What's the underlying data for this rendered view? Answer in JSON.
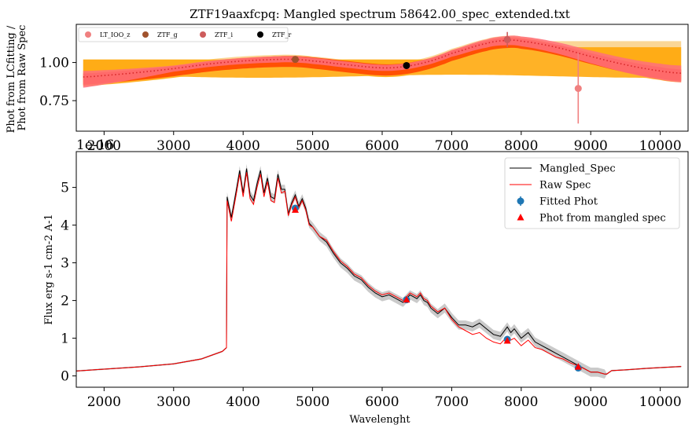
{
  "chart_data": [
    {
      "type": "line",
      "title": "ZTF19aaxfcpq: Mangled spectrum 58642.00_spec_extended.txt",
      "xlabel": "",
      "ylabel": "Phot from LCfitting /\nPhot from Raw Spec",
      "xlim": [
        1600,
        10400
      ],
      "ylim": [
        0.55,
        1.25
      ],
      "xticks": [
        "2000",
        "3000",
        "4000",
        "5000",
        "6000",
        "7000",
        "8000",
        "9000",
        "10000"
      ],
      "yticks": [
        "0.75",
        "1.00"
      ],
      "offset_label": "1e-16",
      "grid": false,
      "legend": "top-left",
      "legend_entries": [
        {
          "name": "LT_IOO_z",
          "color": "#f08080"
        },
        {
          "name": "ZTF_g",
          "color": "#a0522d"
        },
        {
          "name": "ZTF_i",
          "color": "#cd5c5c"
        },
        {
          "name": "ZTF_r",
          "color": "#000000"
        }
      ],
      "ratio_curve": {
        "x": [
          1700,
          2000,
          2500,
          3000,
          3500,
          4000,
          4500,
          4750,
          5000,
          5500,
          6000,
          6350,
          6700,
          7000,
          7500,
          7800,
          8000,
          8500,
          9000,
          9500,
          10000,
          10300
        ],
        "y": [
          0.905,
          0.915,
          0.935,
          0.96,
          0.99,
          1.01,
          1.02,
          1.02,
          1.01,
          0.985,
          0.965,
          0.975,
          1.01,
          1.06,
          1.125,
          1.145,
          1.14,
          1.1,
          1.04,
          0.985,
          0.945,
          0.93
        ]
      },
      "points": [
        {
          "filter": "LT_IOO_z",
          "x": 8820,
          "y": 0.83,
          "yerr": 0.23,
          "color": "#f08080"
        },
        {
          "filter": "ZTF_g",
          "x": 4750,
          "y": 1.02,
          "yerr": 0.02,
          "color": "#a0522d"
        },
        {
          "filter": "ZTF_i",
          "x": 7800,
          "y": 1.15,
          "yerr": 0.05,
          "color": "#cd5c5c"
        },
        {
          "filter": "ZTF_r",
          "x": 6350,
          "y": 0.98,
          "yerr": 0.01,
          "color": "#000000"
        }
      ],
      "colors": {
        "band_light": "#f8c56a",
        "band_orange": "#ffa500",
        "band_red": "#ff4500",
        "band_pink": "#ff6f7d",
        "median": "#d62728"
      }
    },
    {
      "type": "line",
      "title": "",
      "xlabel": "Wavelenght",
      "ylabel": "Flux erg s-1 cm-2 A-1",
      "xlim": [
        1600,
        10400
      ],
      "ylim": [
        -0.3,
        5.95
      ],
      "xticks": [
        "2000",
        "3000",
        "4000",
        "5000",
        "6000",
        "7000",
        "8000",
        "9000",
        "10000"
      ],
      "yticks": [
        "0",
        "1",
        "2",
        "3",
        "4",
        "5"
      ],
      "grid": false,
      "legend": "top-right",
      "legend_entries": [
        {
          "name": "Mangled_Spec",
          "color": "#000000",
          "marker": "line"
        },
        {
          "name": "Raw Spec",
          "color": "#ff0000",
          "marker": "line"
        },
        {
          "name": "Fitted Phot",
          "color": "#1f77b4",
          "marker": "errorbar-dot"
        },
        {
          "name": "Phot from mangled spec",
          "color": "#ff0000",
          "marker": "triangle"
        }
      ],
      "series": [
        {
          "name": "Mangled_Spec",
          "color": "#000000",
          "x": [
            1600,
            2000,
            2500,
            3000,
            3400,
            3700,
            3760,
            3770,
            3830,
            3900,
            3950,
            4000,
            4050,
            4100,
            4150,
            4200,
            4250,
            4300,
            4350,
            4400,
            4450,
            4500,
            4550,
            4600,
            4650,
            4700,
            4750,
            4800,
            4850,
            4900,
            4950,
            5000,
            5100,
            5200,
            5300,
            5400,
            5500,
            5600,
            5700,
            5800,
            5900,
            6000,
            6100,
            6200,
            6300,
            6400,
            6500,
            6550,
            6600,
            6650,
            6700,
            6800,
            6900,
            7000,
            7100,
            7200,
            7300,
            7400,
            7500,
            7600,
            7700,
            7800,
            7850,
            7900,
            8000,
            8100,
            8200,
            8300,
            8400,
            8500,
            8600,
            8700,
            8800,
            8900,
            9000,
            9100,
            9200,
            9230,
            9300,
            9500,
            9800,
            10000,
            10300
          ],
          "y": [
            0.13,
            0.18,
            0.24,
            0.32,
            0.45,
            0.65,
            0.75,
            4.75,
            4.2,
            4.9,
            5.45,
            4.85,
            5.5,
            4.8,
            4.65,
            5.1,
            5.45,
            4.85,
            5.25,
            4.75,
            4.7,
            5.35,
            4.95,
            4.95,
            4.3,
            4.6,
            4.8,
            4.5,
            4.7,
            4.45,
            4.05,
            3.95,
            3.7,
            3.55,
            3.25,
            3.0,
            2.85,
            2.65,
            2.55,
            2.35,
            2.2,
            2.1,
            2.15,
            2.05,
            1.95,
            2.15,
            2.05,
            2.15,
            2.0,
            1.95,
            1.8,
            1.65,
            1.8,
            1.55,
            1.35,
            1.35,
            1.3,
            1.4,
            1.25,
            1.1,
            1.05,
            1.3,
            1.15,
            1.25,
            1.0,
            1.15,
            0.9,
            0.8,
            0.7,
            0.6,
            0.5,
            0.4,
            0.3,
            0.2,
            0.1,
            0.1,
            0.05,
            0.05,
            0.14,
            0.16,
            0.2,
            0.22,
            0.25
          ]
        },
        {
          "name": "Raw Spec",
          "color": "#ff0000",
          "x": [
            1600,
            2000,
            2500,
            3000,
            3400,
            3700,
            3760,
            3770,
            3830,
            3900,
            3950,
            4000,
            4050,
            4100,
            4150,
            4200,
            4250,
            4300,
            4350,
            4400,
            4450,
            4500,
            4550,
            4600,
            4650,
            4700,
            4750,
            4800,
            4850,
            4900,
            4950,
            5000,
            5100,
            5200,
            5300,
            5400,
            5500,
            5600,
            5700,
            5800,
            5900,
            6000,
            6100,
            6200,
            6300,
            6400,
            6500,
            6550,
            6600,
            6650,
            6700,
            6800,
            6900,
            7000,
            7100,
            7200,
            7300,
            7400,
            7500,
            7600,
            7700,
            7800,
            7850,
            7900,
            8000,
            8100,
            8200,
            8300,
            8400,
            8500,
            8600,
            8700,
            8800,
            8900,
            9000,
            9100,
            9200,
            9230,
            9300,
            9500,
            9800,
            10000,
            10300
          ],
          "y": [
            0.13,
            0.18,
            0.24,
            0.32,
            0.45,
            0.65,
            0.75,
            4.65,
            4.1,
            4.8,
            5.35,
            4.75,
            5.4,
            4.7,
            4.55,
            5.0,
            5.35,
            4.75,
            5.15,
            4.65,
            4.6,
            5.25,
            4.85,
            4.9,
            4.25,
            4.55,
            4.75,
            4.45,
            4.65,
            4.4,
            4.0,
            3.95,
            3.7,
            3.6,
            3.3,
            3.05,
            2.9,
            2.7,
            2.6,
            2.4,
            2.25,
            2.15,
            2.2,
            2.1,
            2.0,
            2.2,
            2.1,
            2.2,
            2.05,
            2.0,
            1.85,
            1.7,
            1.8,
            1.5,
            1.3,
            1.2,
            1.1,
            1.15,
            1.0,
            0.9,
            0.85,
            1.05,
            0.95,
            1.0,
            0.8,
            0.95,
            0.75,
            0.7,
            0.6,
            0.5,
            0.45,
            0.35,
            0.28,
            0.2,
            0.1,
            0.1,
            0.05,
            0.05,
            0.14,
            0.16,
            0.2,
            0.22,
            0.25
          ]
        }
      ],
      "fitted_phot": [
        {
          "x": 4750,
          "y": 4.45
        },
        {
          "x": 6350,
          "y": 2.02
        },
        {
          "x": 7800,
          "y": 0.97
        },
        {
          "x": 8820,
          "y": 0.21
        }
      ],
      "phot_from_mangled_spec": [
        {
          "x": 4750,
          "y": 4.4
        },
        {
          "x": 6350,
          "y": 2.02
        },
        {
          "x": 7800,
          "y": 0.93
        },
        {
          "x": 8820,
          "y": 0.24
        }
      ]
    }
  ]
}
